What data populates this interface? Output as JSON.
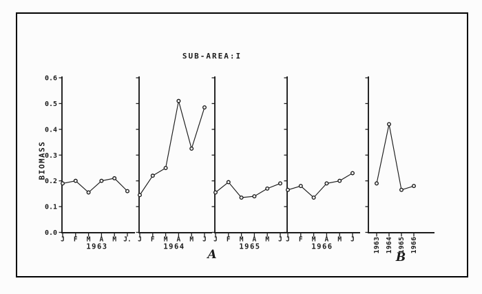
{
  "figure": {
    "title": "SUB-AREA:I",
    "y_axis_label": "BIOMASS",
    "panel_a_label": "A",
    "panel_b_label": "B",
    "ink_color": "#1b1b1b",
    "paper_color": "#fcfcfc"
  },
  "chart_data": [
    {
      "id": "A",
      "type": "line",
      "title": "SUB-AREA:I",
      "ylabel": "BIOMASS",
      "ylim": [
        0.0,
        0.6
      ],
      "yticks": [
        0.0,
        0.1,
        0.2,
        0.3,
        0.4,
        0.5,
        0.6
      ],
      "grid": false,
      "legend": "none",
      "marker": "open-circle",
      "panels": [
        {
          "year": "1963",
          "categories": [
            "J",
            "F",
            "M",
            "A",
            "M",
            "J."
          ],
          "values": [
            0.19,
            0.2,
            0.155,
            0.2,
            0.21,
            0.16
          ]
        },
        {
          "year": "1964",
          "categories": [
            "J",
            "F",
            "M",
            "A",
            "M",
            "J"
          ],
          "values": [
            0.145,
            0.22,
            0.25,
            0.51,
            0.325,
            0.485
          ]
        },
        {
          "year": "1965",
          "categories": [
            "J",
            "F",
            "M",
            "A",
            "M",
            "J"
          ],
          "values": [
            0.155,
            0.195,
            0.135,
            0.14,
            0.17,
            0.19
          ]
        },
        {
          "year": "1966",
          "categories": [
            "J",
            "F",
            "M",
            "A",
            "M",
            "J"
          ],
          "values": [
            0.165,
            0.18,
            0.135,
            0.19,
            0.2,
            0.23
          ]
        }
      ]
    },
    {
      "id": "B",
      "type": "line",
      "ylim": [
        0.0,
        0.6
      ],
      "yticks": [
        0.0,
        0.1,
        0.2,
        0.3,
        0.4,
        0.5,
        0.6
      ],
      "grid": false,
      "legend": "none",
      "marker": "open-circle",
      "categories": [
        "1963",
        "1964",
        "1965",
        "1966"
      ],
      "values": [
        0.19,
        0.42,
        0.165,
        0.18
      ]
    }
  ]
}
